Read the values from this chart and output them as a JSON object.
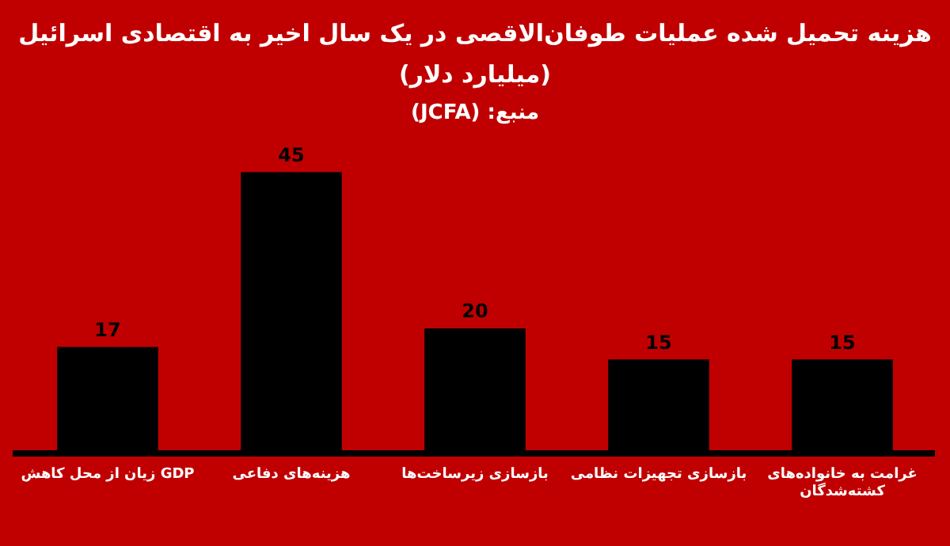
{
  "chart_data": {
    "type": "bar",
    "title": "هزینه تحمیل شده عملیات طوفان‌الاقصی در یک سال اخیر به اقتصادی اسرائیل\n(میلیارد دلار)",
    "subtitle": "منبع: (JCFA)",
    "categories": [
      "زیان از محل کاهش GDP",
      "هزینه‌های دفاعی",
      "بازسازی زیرساخت‌ها",
      "بازسازی تجهیزات نظامی",
      "غرامت به خانواده‌های\nکشته‌شدگان"
    ],
    "values": [
      17,
      45,
      20,
      15,
      15
    ],
    "color": "#000000",
    "data_labels": true,
    "grid": false,
    "legend": false
  }
}
